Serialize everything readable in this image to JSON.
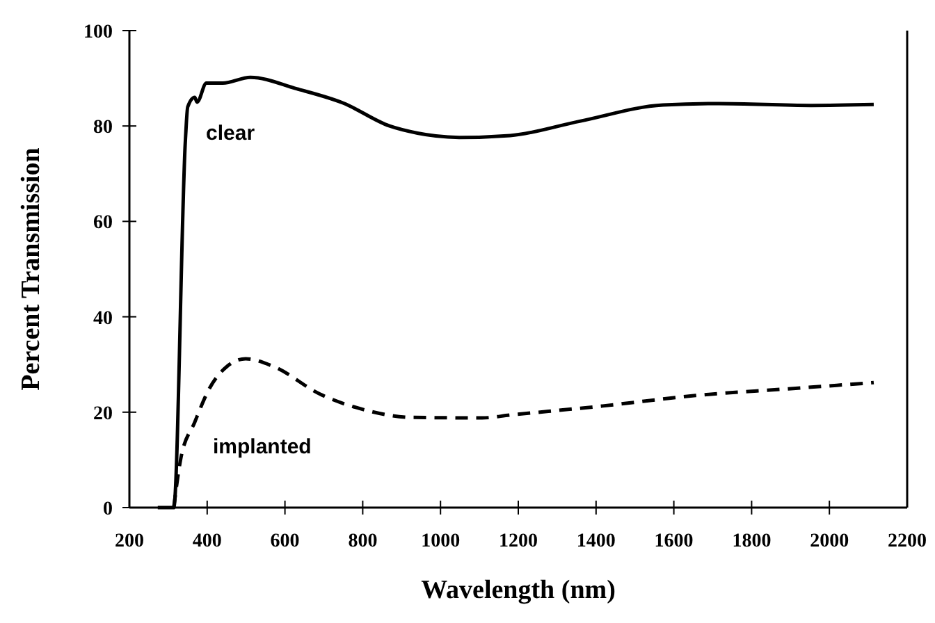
{
  "chart_data": {
    "type": "line",
    "xlabel": "Wavelength (nm)",
    "ylabel": "Percent Transmission",
    "xlim": [
      200,
      2200
    ],
    "ylim": [
      0,
      100
    ],
    "xticks": [
      200,
      400,
      600,
      800,
      1000,
      1200,
      1400,
      1600,
      1800,
      2000,
      2200
    ],
    "yticks": [
      0,
      20,
      40,
      60,
      80,
      100
    ],
    "grid": false,
    "series": [
      {
        "name": "clear",
        "color": "#000000",
        "line_style": "solid",
        "x": [
          273,
          314,
          344,
          350,
          368,
          374,
          398,
          440,
          511,
          630,
          750,
          869,
          941,
          988,
          1048,
          1179,
          1358,
          1572,
          1716,
          1953,
          2114
        ],
        "values": [
          0,
          0,
          77,
          84,
          86,
          85,
          89,
          89,
          90.2,
          87.8,
          84.8,
          80,
          78.5,
          77.9,
          77.6,
          78,
          81,
          84.4,
          84.7,
          84.3,
          84.5
        ]
      },
      {
        "name": "implanted",
        "color": "#000000",
        "line_style": "dashed",
        "x": [
          314,
          332,
          368,
          404,
          451,
          499,
          570,
          690,
          809,
          929,
          1107,
          1179,
          1417,
          1656,
          1895,
          2114
        ],
        "values": [
          0,
          10.2,
          17.9,
          24.7,
          29.6,
          31.2,
          29.6,
          23.8,
          20.4,
          18.9,
          18.8,
          19.4,
          21.3,
          23.5,
          24.9,
          26.2
        ]
      }
    ]
  }
}
